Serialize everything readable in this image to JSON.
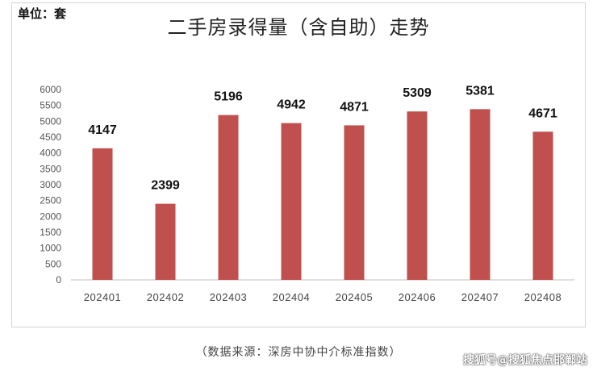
{
  "unit_label": "单位：套",
  "source_note": "（数据来源：深房中协中介标准指数）",
  "watermark": "搜狐号@搜狐焦点邯郸站",
  "chart_data": {
    "type": "bar",
    "title": "二手房录得量（含自助）走势",
    "categories": [
      "202401",
      "202402",
      "202403",
      "202404",
      "202405",
      "202406",
      "202407",
      "202408"
    ],
    "values": [
      4147,
      2399,
      5196,
      4942,
      4871,
      5309,
      5381,
      4671
    ],
    "ylim": [
      0,
      6000
    ],
    "yticks": [
      0,
      500,
      1000,
      1500,
      2000,
      2500,
      3000,
      3500,
      4000,
      4500,
      5000,
      5500,
      6000
    ],
    "bar_color": "#c0504d",
    "grid": false,
    "legend": "none"
  }
}
